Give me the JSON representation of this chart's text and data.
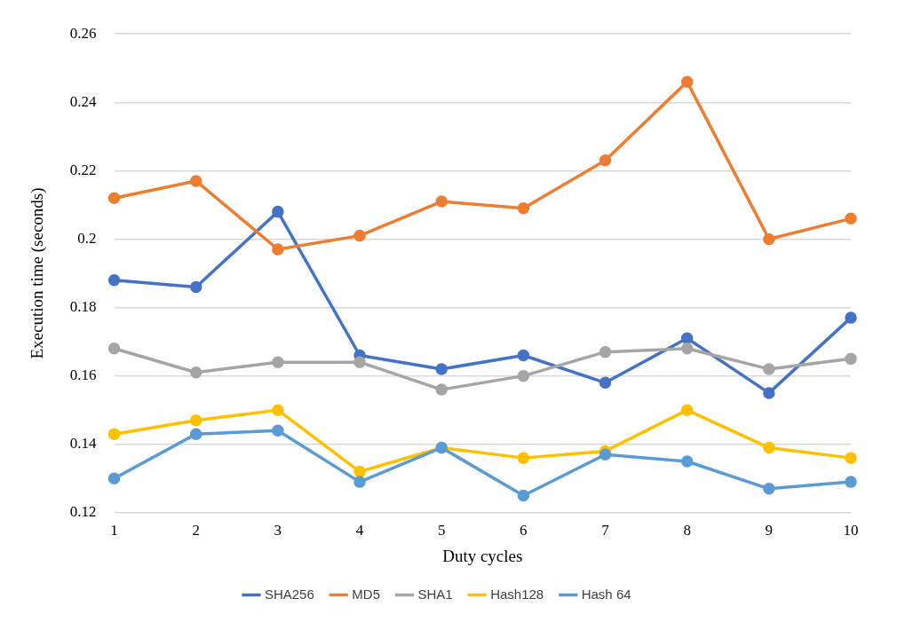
{
  "chart_data": {
    "type": "line",
    "xlabel": "Duty cycles",
    "ylabel": "Execution time (seconds)",
    "categories": [
      "1",
      "2",
      "3",
      "4",
      "5",
      "6",
      "7",
      "8",
      "9",
      "10"
    ],
    "series": [
      {
        "name": "SHA256",
        "color": "#4472c4",
        "values": [
          0.188,
          0.186,
          0.208,
          0.166,
          0.162,
          0.166,
          0.158,
          0.171,
          0.155,
          0.177
        ]
      },
      {
        "name": "MD5",
        "color": "#ed7d31",
        "values": [
          0.212,
          0.217,
          0.197,
          0.201,
          0.211,
          0.209,
          0.223,
          0.246,
          0.2,
          0.206
        ]
      },
      {
        "name": "SHA1",
        "color": "#a5a5a5",
        "values": [
          0.168,
          0.161,
          0.164,
          0.164,
          0.156,
          0.16,
          0.167,
          0.168,
          0.162,
          0.165
        ]
      },
      {
        "name": "Hash128",
        "color": "#ffc000",
        "values": [
          0.143,
          0.147,
          0.15,
          0.132,
          0.139,
          0.136,
          0.138,
          0.15,
          0.139,
          0.136
        ]
      },
      {
        "name": "Hash 64",
        "color": "#5b9bd5",
        "values": [
          0.13,
          0.143,
          0.144,
          0.129,
          0.139,
          0.125,
          0.137,
          0.135,
          0.127,
          0.129
        ]
      }
    ],
    "ylim": [
      0.12,
      0.26
    ],
    "yticks": [
      0.12,
      0.14,
      0.16,
      0.18,
      0.2,
      0.22,
      0.24,
      0.26
    ],
    "grid": "y",
    "legend": "bottom",
    "marker": "circle",
    "line_style": "solid"
  }
}
